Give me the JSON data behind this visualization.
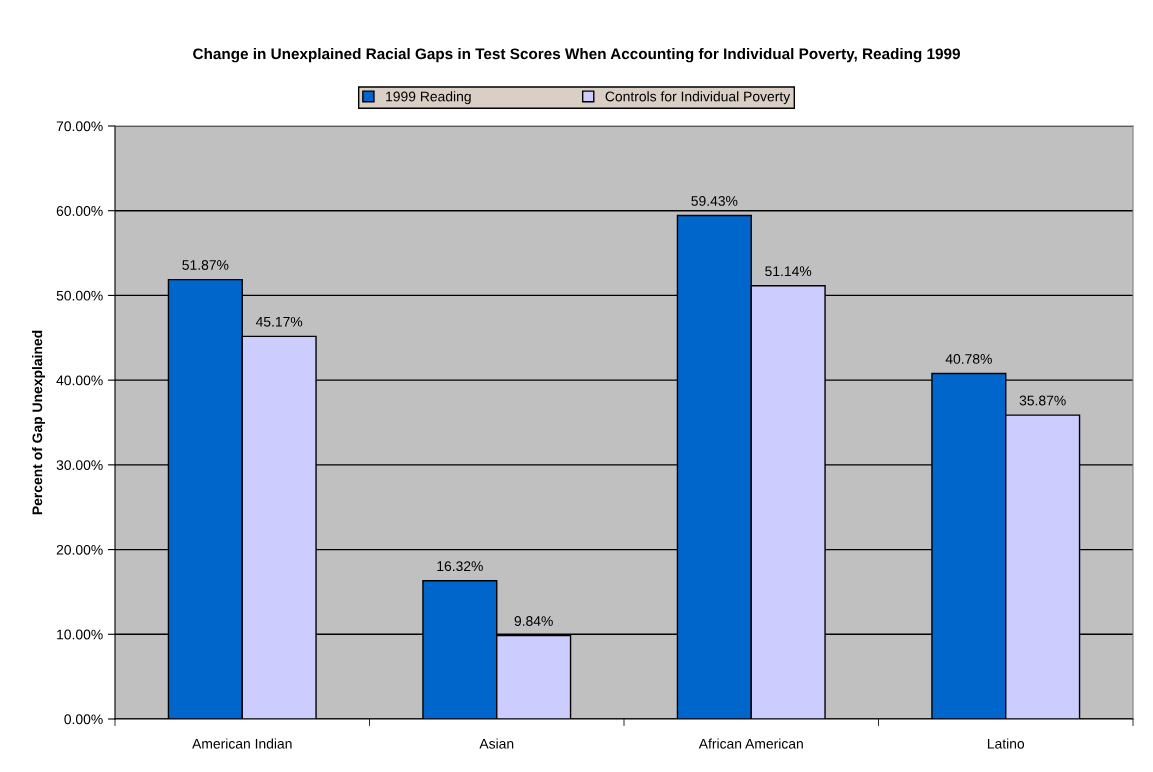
{
  "chart_data": {
    "type": "bar",
    "title": "Change in Unexplained Racial Gaps in Test Scores When Accounting for Individual Poverty, Reading 1999",
    "ylabel": "Percent of Gap Unexplained",
    "categories": [
      "American Indian",
      "Asian",
      "African American",
      "Latino"
    ],
    "series": [
      {
        "name": "1999 Reading",
        "color": "#0066cc",
        "values": [
          51.87,
          16.32,
          59.43,
          40.78
        ],
        "value_labels": [
          "51.87%",
          "16.32%",
          "59.43%",
          "40.78%"
        ]
      },
      {
        "name": "Controls for Individual Poverty",
        "color": "#ccccff",
        "values": [
          45.17,
          9.84,
          51.14,
          35.87
        ],
        "value_labels": [
          "45.17%",
          "9.84%",
          "51.14%",
          "35.87%"
        ]
      }
    ],
    "ylim": [
      0,
      70
    ],
    "yticks": [
      {
        "value": 0,
        "label": "0.00%"
      },
      {
        "value": 10,
        "label": "10.00%"
      },
      {
        "value": 20,
        "label": "20.00%"
      },
      {
        "value": 30,
        "label": "30.00%"
      },
      {
        "value": 40,
        "label": "40.00%"
      },
      {
        "value": 50,
        "label": "50.00%"
      },
      {
        "value": 60,
        "label": "60.00%"
      },
      {
        "value": 70,
        "label": "70.00%"
      }
    ],
    "grid": "y",
    "legend": "top"
  }
}
